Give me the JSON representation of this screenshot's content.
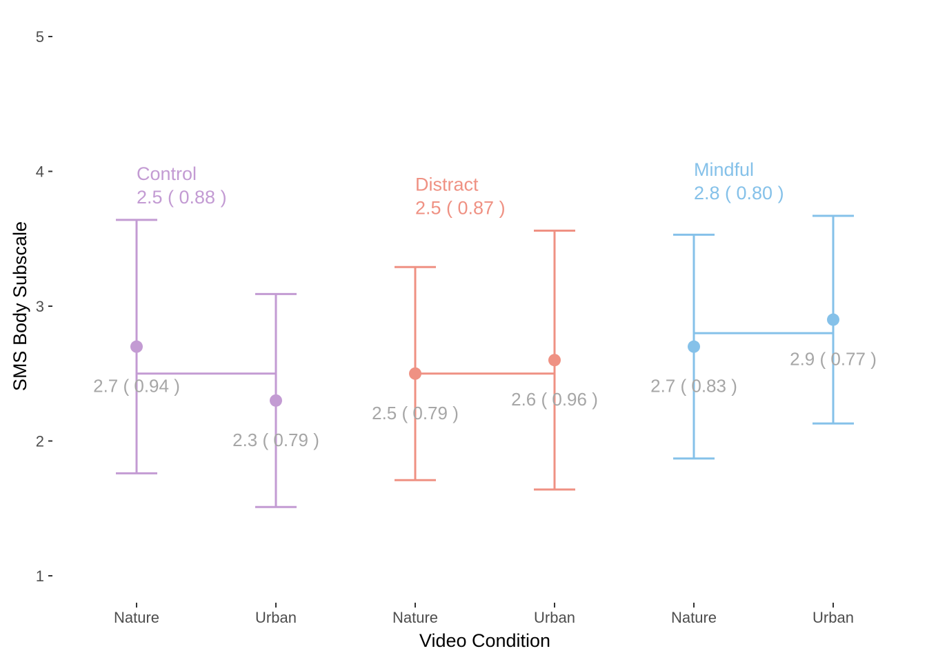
{
  "chart_data": {
    "type": "scatter",
    "xlabel": "Video Condition",
    "ylabel": "SMS Body Subscale",
    "ylim": [
      1,
      5
    ],
    "yticks": [
      "1",
      "2",
      "3",
      "4",
      "5"
    ],
    "grid": false,
    "groups": [
      {
        "name": "Control",
        "color": "#c39bd3",
        "summary_mean": 2.5,
        "summary_label": "2.5  ( 0.88 )",
        "points": [
          {
            "x": "Nature",
            "mean": 2.7,
            "lower": 1.76,
            "upper": 3.64,
            "label": "2.7  ( 0.94 )"
          },
          {
            "x": "Urban",
            "mean": 2.3,
            "lower": 1.51,
            "upper": 3.09,
            "label": "2.3  ( 0.79 )"
          }
        ]
      },
      {
        "name": "Distract",
        "color": "#ef9183",
        "summary_mean": 2.5,
        "summary_label": "2.5  ( 0.87 )",
        "points": [
          {
            "x": "Nature",
            "mean": 2.5,
            "lower": 1.71,
            "upper": 3.29,
            "label": "2.5  ( 0.79 )"
          },
          {
            "x": "Urban",
            "mean": 2.6,
            "lower": 1.64,
            "upper": 3.56,
            "label": "2.6  ( 0.96 )"
          }
        ]
      },
      {
        "name": "Mindful",
        "color": "#85c1e9",
        "summary_mean": 2.8,
        "summary_label": "2.8  ( 0.80 )",
        "points": [
          {
            "x": "Nature",
            "mean": 2.7,
            "lower": 1.87,
            "upper": 3.53,
            "label": "2.7  ( 0.83 )"
          },
          {
            "x": "Urban",
            "mean": 2.9,
            "lower": 2.13,
            "upper": 3.67,
            "label": "2.9  ( 0.77 )"
          }
        ]
      }
    ]
  }
}
